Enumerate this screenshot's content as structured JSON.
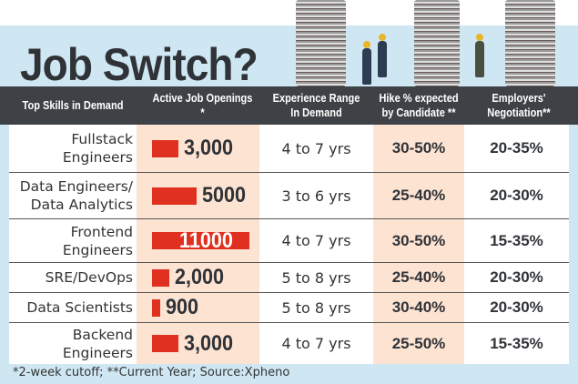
{
  "title": "Job Switch?",
  "colors": {
    "bar": "#e03020",
    "header": "#3e4246",
    "background": "#cfe7f2",
    "highlight_column": "#fde3d2"
  },
  "chart_data": {
    "type": "table",
    "columns": [
      "Top Skills in Demand",
      "Active Job Openings *",
      "Experience Range In Demand",
      "Hike % expected by Candidate **",
      "Employers' Negotiation**"
    ],
    "rows": [
      {
        "skill": "Fullstack Engineers",
        "openings": 3000,
        "openings_label": "3,000",
        "experience": "4 to 7 yrs",
        "hike": "30-50%",
        "negotiation": "20-35%"
      },
      {
        "skill": "Data Engineers/ Data Analytics",
        "openings": 5000,
        "openings_label": "5000",
        "experience": "3 to 6 yrs",
        "hike": "25-40%",
        "negotiation": "20-30%"
      },
      {
        "skill": "Frontend Engineers",
        "openings": 11000,
        "openings_label": "11000",
        "experience": "4 to 7 yrs",
        "hike": "30-50%",
        "negotiation": "15-35%"
      },
      {
        "skill": "SRE/DevOps",
        "openings": 2000,
        "openings_label": "2,000",
        "experience": "5 to 8 yrs",
        "hike": "25-40%",
        "negotiation": "20-30%"
      },
      {
        "skill": "Data Scientists",
        "openings": 900,
        "openings_label": "900",
        "experience": "5 to 8 yrs",
        "hike": "30-40%",
        "negotiation": "20-30%"
      },
      {
        "skill": "Backend Engineers",
        "openings": 3000,
        "openings_label": "3,000",
        "experience": "4 to 7 yrs",
        "hike": "25-50%",
        "negotiation": "15-35%"
      }
    ]
  },
  "footnote": "*2-week cutoff; **Current Year; Source:Xpheno"
}
